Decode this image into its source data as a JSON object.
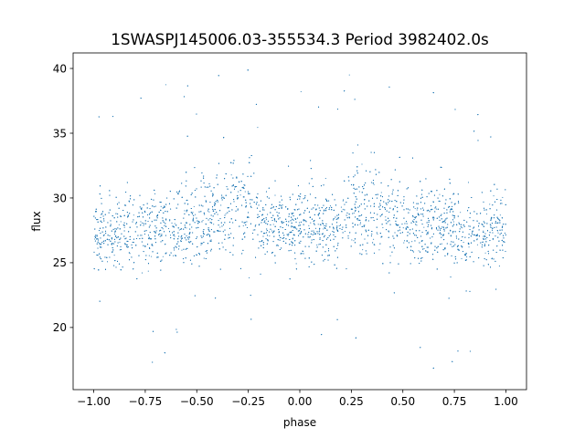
{
  "chart_data": {
    "type": "scatter",
    "title": "1SWASPJ145006.03-355534.3 Period 3982402.0s",
    "xlabel": "phase",
    "ylabel": "flux",
    "xlim": [
      -1.1,
      1.1
    ],
    "ylim": [
      15.2,
      41.2
    ],
    "xticks": [
      -1.0,
      -0.75,
      -0.5,
      -0.25,
      0.0,
      0.25,
      0.5,
      0.75,
      1.0
    ],
    "xtick_labels": [
      "−1.00",
      "−0.75",
      "−0.50",
      "−0.25",
      "0.00",
      "0.25",
      "0.50",
      "0.75",
      "1.00"
    ],
    "yticks": [
      20,
      25,
      30,
      35,
      40
    ],
    "ytick_labels": [
      "20",
      "25",
      "30",
      "35",
      "40"
    ],
    "grid": false,
    "legend": "none",
    "marker_color": "#1f77b4",
    "series": [
      {
        "phase_range": [
          -1.0,
          1.0
        ],
        "flux_range": [
          16.5,
          40.2
        ],
        "mirrored_about_zero": true,
        "profile": [
          {
            "phase": 0.0,
            "flux_median": 27.8,
            "flux_spread": 2.6
          },
          {
            "phase": 0.05,
            "flux_median": 27.8,
            "flux_spread": 2.5
          },
          {
            "phase": 0.1,
            "flux_median": 27.9,
            "flux_spread": 2.6
          },
          {
            "phase": 0.15,
            "flux_median": 28.1,
            "flux_spread": 2.6
          },
          {
            "phase": 0.2,
            "flux_median": 28.3,
            "flux_spread": 2.6
          },
          {
            "phase": 0.25,
            "flux_median": 29.6,
            "flux_spread": 2.8
          },
          {
            "phase": 0.3,
            "flux_median": 29.4,
            "flux_spread": 3.3
          },
          {
            "phase": 0.35,
            "flux_median": 28.7,
            "flux_spread": 3.1
          },
          {
            "phase": 0.4,
            "flux_median": 28.6,
            "flux_spread": 3.1
          },
          {
            "phase": 0.45,
            "flux_median": 28.5,
            "flux_spread": 3.0
          },
          {
            "phase": 0.5,
            "flux_median": 28.2,
            "flux_spread": 2.9
          },
          {
            "phase": 0.55,
            "flux_median": 28.0,
            "flux_spread": 2.9
          },
          {
            "phase": 0.6,
            "flux_median": 27.9,
            "flux_spread": 2.8
          },
          {
            "phase": 0.65,
            "flux_median": 27.8,
            "flux_spread": 2.8
          },
          {
            "phase": 0.7,
            "flux_median": 27.8,
            "flux_spread": 2.7
          },
          {
            "phase": 0.75,
            "flux_median": 27.7,
            "flux_spread": 2.7
          },
          {
            "phase": 0.8,
            "flux_median": 27.6,
            "flux_spread": 2.8
          },
          {
            "phase": 0.85,
            "flux_median": 27.4,
            "flux_spread": 2.7
          },
          {
            "phase": 0.9,
            "flux_median": 27.3,
            "flux_spread": 2.7
          },
          {
            "phase": 0.95,
            "flux_median": 27.5,
            "flux_spread": 2.6
          },
          {
            "phase": 1.0,
            "flux_median": 27.3,
            "flux_spread": 2.5
          }
        ]
      }
    ]
  }
}
